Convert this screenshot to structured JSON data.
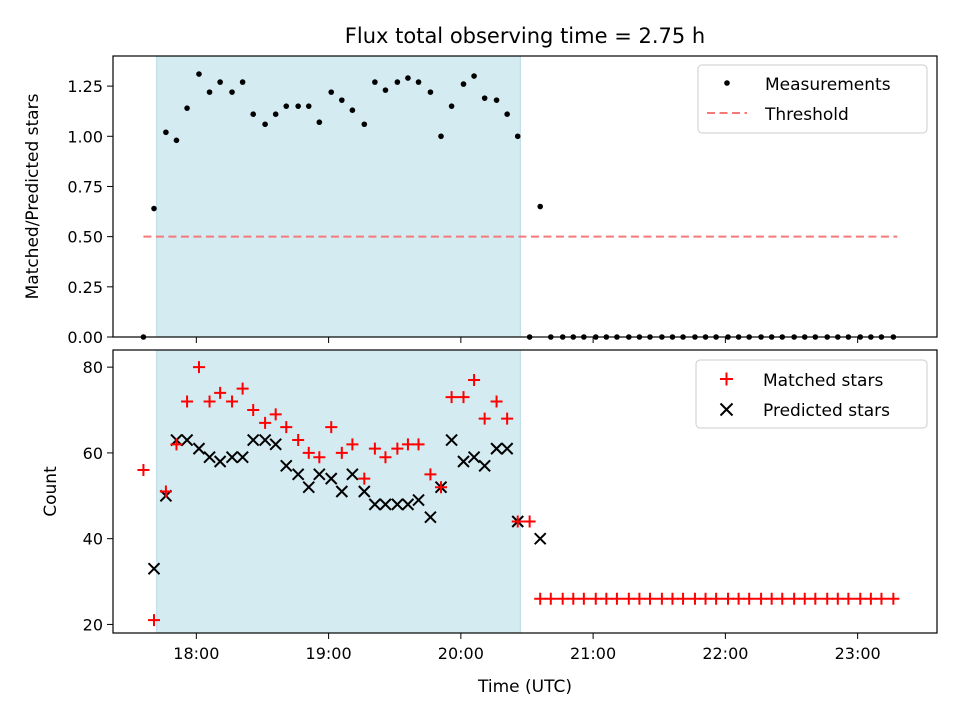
{
  "chart_data": {
    "type": "scatter",
    "title": "Flux total observing time = 2.75 h",
    "xlabel": "Time (UTC)",
    "x_tick_labels": [
      "18:00",
      "19:00",
      "20:00",
      "21:00",
      "22:00",
      "23:00"
    ],
    "x_tick_values_h": [
      18,
      19,
      20,
      21,
      22,
      23
    ],
    "xlim_h": [
      17.37,
      23.6
    ],
    "observing_window_h": [
      17.7,
      20.45
    ],
    "colors": {
      "window": "#d4ebf1",
      "measurements": "#000000",
      "threshold": "#f47a7a",
      "matched": "#ff0000",
      "predicted": "#000000"
    },
    "panels": [
      {
        "ylabel": "Matched/Predicted stars",
        "ylim": [
          0,
          1.4
        ],
        "y_ticks": [
          0.0,
          0.25,
          0.5,
          0.75,
          1.0,
          1.25
        ],
        "y_tick_labels": [
          "0.00",
          "0.25",
          "0.50",
          "0.75",
          "1.00",
          "1.25"
        ],
        "legend": {
          "position": "top-right",
          "measurements": "Measurements",
          "threshold": "Threshold"
        },
        "threshold": {
          "value": 0.5,
          "x_range_h": [
            17.6,
            23.3
          ]
        },
        "measurements": {
          "x_h": [
            17.6,
            17.68,
            17.77,
            17.85,
            17.93,
            18.02,
            18.1,
            18.18,
            18.27,
            18.35,
            18.43,
            18.52,
            18.6,
            18.68,
            18.77,
            18.85,
            18.93,
            19.02,
            19.1,
            19.18,
            19.27,
            19.35,
            19.43,
            19.52,
            19.6,
            19.68,
            19.77,
            19.85,
            19.93,
            20.02,
            20.1,
            20.18,
            20.27,
            20.35,
            20.43,
            20.52,
            20.6,
            20.68,
            20.77,
            20.85,
            20.93,
            21.02,
            21.1,
            21.18,
            21.27,
            21.35,
            21.43,
            21.52,
            21.6,
            21.68,
            21.77,
            21.85,
            21.93,
            22.02,
            22.1,
            22.18,
            22.27,
            22.35,
            22.43,
            22.52,
            22.6,
            22.68,
            22.77,
            22.85,
            22.93,
            23.02,
            23.1,
            23.18,
            23.27
          ],
          "y": [
            0.0,
            0.64,
            1.02,
            0.98,
            1.14,
            1.31,
            1.22,
            1.27,
            1.22,
            1.27,
            1.11,
            1.06,
            1.11,
            1.15,
            1.15,
            1.15,
            1.07,
            1.22,
            1.18,
            1.13,
            1.06,
            1.27,
            1.23,
            1.27,
            1.29,
            1.27,
            1.22,
            1.0,
            1.15,
            1.26,
            1.3,
            1.19,
            1.18,
            1.11,
            1.0,
            0.0,
            0.65,
            0.0,
            0.0,
            0.0,
            0.0,
            0.0,
            0.0,
            0.0,
            0.0,
            0.0,
            0.0,
            0.0,
            0.0,
            0.0,
            0.0,
            0.0,
            0.0,
            0.0,
            0.0,
            0.0,
            0.0,
            0.0,
            0.0,
            0.0,
            0.0,
            0.0,
            0.0,
            0.0,
            0.0,
            0.0,
            0.0,
            0.0,
            0.0
          ]
        }
      },
      {
        "ylabel": "Count",
        "ylim": [
          18,
          84
        ],
        "y_ticks": [
          20,
          40,
          60,
          80
        ],
        "y_tick_labels": [
          "20",
          "40",
          "60",
          "80"
        ],
        "legend": {
          "position": "top-right",
          "matched": "Matched stars",
          "predicted": "Predicted stars"
        },
        "matched": {
          "x_h": [
            17.6,
            17.68,
            17.77,
            17.85,
            17.93,
            18.02,
            18.1,
            18.18,
            18.27,
            18.35,
            18.43,
            18.52,
            18.6,
            18.68,
            18.77,
            18.85,
            18.93,
            19.02,
            19.1,
            19.18,
            19.27,
            19.35,
            19.43,
            19.52,
            19.6,
            19.68,
            19.77,
            19.85,
            19.93,
            20.02,
            20.1,
            20.18,
            20.27,
            20.35,
            20.43,
            20.52,
            20.6,
            20.68,
            20.77,
            20.85,
            20.93,
            21.02,
            21.1,
            21.18,
            21.27,
            21.35,
            21.43,
            21.52,
            21.6,
            21.68,
            21.77,
            21.85,
            21.93,
            22.02,
            22.1,
            22.18,
            22.27,
            22.35,
            22.43,
            22.52,
            22.6,
            22.68,
            22.77,
            22.85,
            22.93,
            23.02,
            23.1,
            23.18,
            23.27
          ],
          "y": [
            56,
            21,
            51,
            62,
            72,
            80,
            72,
            74,
            72,
            75,
            70,
            67,
            69,
            66,
            63,
            60,
            59,
            66,
            60,
            62,
            54,
            61,
            59,
            61,
            62,
            62,
            55,
            52,
            73,
            73,
            77,
            68,
            72,
            68,
            44,
            44,
            26,
            26,
            26,
            26,
            26,
            26,
            26,
            26,
            26,
            26,
            26,
            26,
            26,
            26,
            26,
            26,
            26,
            26,
            26,
            26,
            26,
            26,
            26,
            26,
            26,
            26,
            26,
            26,
            26,
            26,
            26,
            26,
            26
          ]
        },
        "predicted": {
          "x_h": [
            17.68,
            17.77,
            17.85,
            17.93,
            18.02,
            18.1,
            18.18,
            18.27,
            18.35,
            18.43,
            18.52,
            18.6,
            18.68,
            18.77,
            18.85,
            18.93,
            19.02,
            19.1,
            19.18,
            19.27,
            19.35,
            19.43,
            19.52,
            19.6,
            19.68,
            19.77,
            19.85,
            19.93,
            20.02,
            20.1,
            20.18,
            20.27,
            20.35,
            20.43,
            20.6
          ],
          "y": [
            33,
            50,
            63,
            63,
            61,
            59,
            58,
            59,
            59,
            63,
            63,
            62,
            57,
            55,
            52,
            55,
            54,
            51,
            55,
            51,
            48,
            48,
            48,
            48,
            49,
            45,
            52,
            63,
            58,
            59,
            57,
            61,
            61,
            44,
            40
          ]
        }
      }
    ]
  }
}
